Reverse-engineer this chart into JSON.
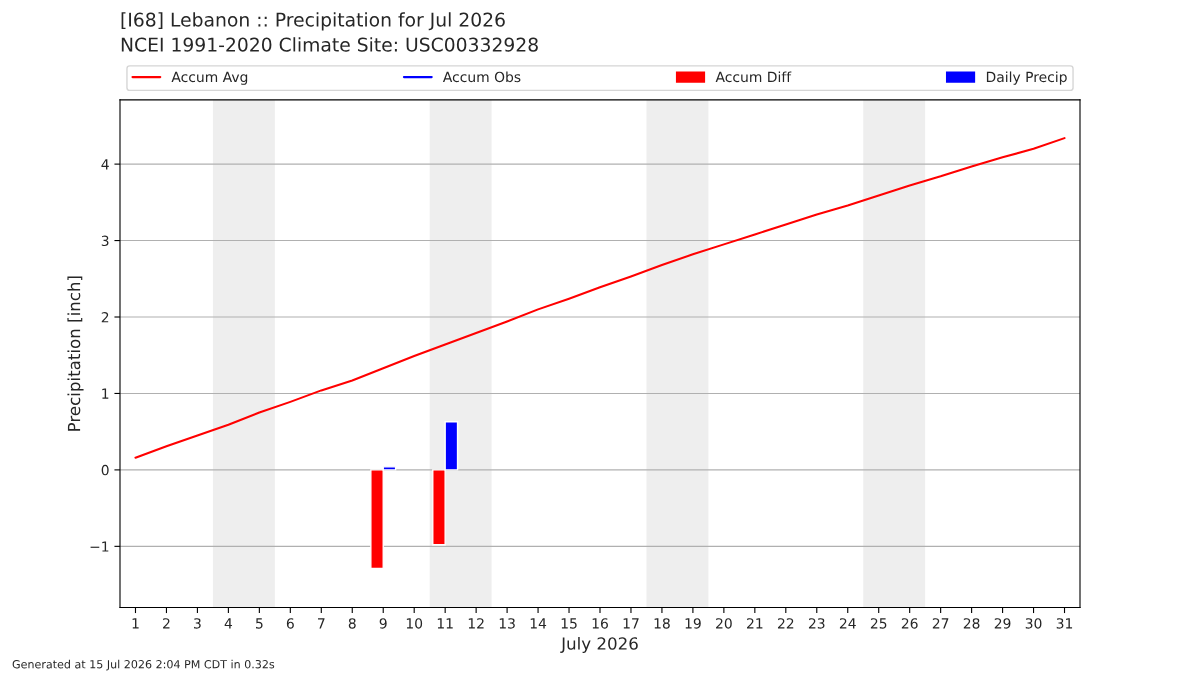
{
  "chart_data": {
    "type": "line",
    "title": "[I68] Lebanon :: Precipitation for Jul 2026",
    "subtitle": "NCEI 1991-2020 Climate Site: USC00332928",
    "xlabel": "July 2026",
    "ylabel": "Precipitation [inch]",
    "x": [
      1,
      2,
      3,
      4,
      5,
      6,
      7,
      8,
      9,
      10,
      11,
      12,
      13,
      14,
      15,
      16,
      17,
      18,
      19,
      20,
      21,
      22,
      23,
      24,
      25,
      26,
      27,
      28,
      29,
      30,
      31
    ],
    "series": [
      {
        "name": "Accum Avg",
        "color": "#ff0000",
        "values": [
          0.16,
          0.31,
          0.45,
          0.59,
          0.75,
          0.89,
          1.04,
          1.17,
          1.33,
          1.49,
          1.64,
          1.79,
          1.94,
          2.1,
          2.24,
          2.39,
          2.53,
          2.68,
          2.82,
          2.95,
          3.08,
          3.21,
          3.34,
          3.46,
          3.59,
          3.72,
          3.84,
          3.97,
          4.09,
          4.2,
          4.34
        ]
      },
      {
        "name": "Accum Obs",
        "color": "#0000ff",
        "values": [
          null,
          null,
          null,
          null,
          null,
          null,
          null,
          null,
          null,
          null,
          null,
          null,
          null,
          null,
          null,
          null,
          null,
          null,
          null,
          null,
          null,
          null,
          null,
          null,
          null,
          null,
          null,
          null,
          null,
          null,
          null
        ]
      },
      {
        "name": "Accum Diff",
        "type": "bar",
        "color": "#ff0000",
        "values": [
          null,
          null,
          null,
          null,
          null,
          null,
          null,
          null,
          -1.29,
          null,
          -0.98,
          null,
          null,
          null,
          null,
          null,
          null,
          null,
          null,
          null,
          null,
          null,
          null,
          null,
          null,
          null,
          null,
          null,
          null,
          null,
          null
        ]
      },
      {
        "name": "Daily Precip",
        "type": "bar",
        "color": "#0000ff",
        "values": [
          null,
          null,
          null,
          null,
          null,
          null,
          null,
          null,
          0.04,
          null,
          0.63,
          null,
          null,
          null,
          null,
          null,
          null,
          null,
          null,
          null,
          null,
          null,
          null,
          null,
          null,
          null,
          null,
          null,
          null,
          null,
          null
        ]
      }
    ],
    "bands": [
      {
        "axis": "x",
        "from": 3.5,
        "to": 5.5,
        "color": "#eeeeee"
      },
      {
        "axis": "x",
        "from": 10.5,
        "to": 12.5,
        "color": "#eeeeee"
      },
      {
        "axis": "x",
        "from": 17.5,
        "to": 19.5,
        "color": "#eeeeee"
      },
      {
        "axis": "x",
        "from": 24.5,
        "to": 26.5,
        "color": "#eeeeee"
      }
    ],
    "xlim": [
      0.5,
      31.5
    ],
    "xticks": [
      1,
      2,
      3,
      4,
      5,
      6,
      7,
      8,
      9,
      10,
      11,
      12,
      13,
      14,
      15,
      16,
      17,
      18,
      19,
      20,
      21,
      22,
      23,
      24,
      25,
      26,
      27,
      28,
      29,
      30,
      31
    ],
    "ylim": [
      -1.8,
      4.84
    ],
    "yticks": [
      {
        "value": -1,
        "label": "−1"
      },
      0,
      1,
      2,
      3,
      4
    ],
    "grid": "y",
    "legend": "top",
    "annotations": [
      "Generated at 15 Jul 2026 2:04 PM CDT in 0.32s"
    ]
  }
}
